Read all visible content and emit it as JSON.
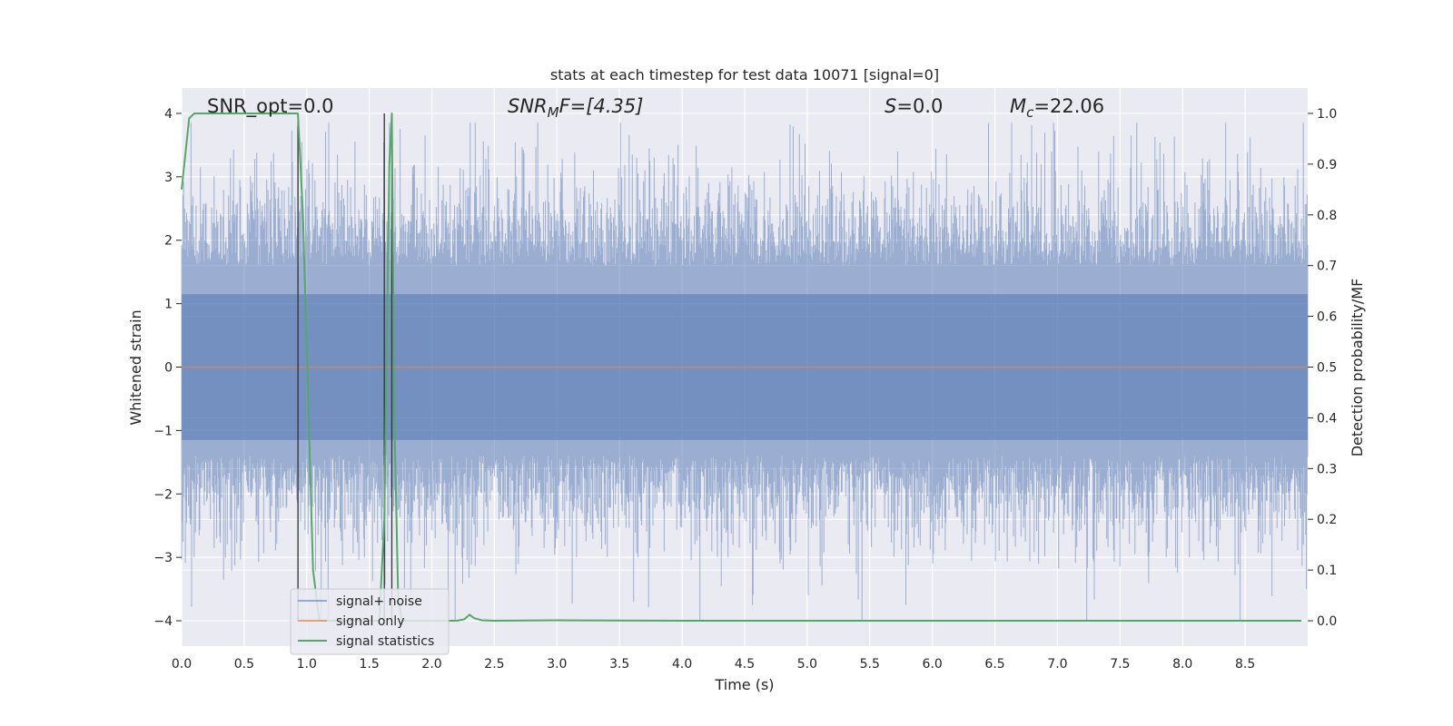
{
  "chart_data": {
    "type": "line",
    "title": "stats at each timestep for test data 10071 [signal=0]",
    "xlabel": "Time (s)",
    "ylabel": "Whitened strain",
    "y2label": "Detection probability/MF",
    "xlim": [
      0.0,
      9.0
    ],
    "ylim": [
      -4.4,
      4.4
    ],
    "y2lim": [
      -0.05,
      1.05
    ],
    "x_ticks": [
      "0.0",
      "0.5",
      "1.0",
      "1.5",
      "2.0",
      "2.5",
      "3.0",
      "3.5",
      "4.0",
      "4.5",
      "5.0",
      "5.5",
      "6.0",
      "6.5",
      "7.0",
      "7.5",
      "8.0",
      "8.5"
    ],
    "y_ticks": [
      "4",
      "3",
      "2",
      "1",
      "0",
      "−1",
      "−2",
      "−3",
      "−4"
    ],
    "y2_ticks": [
      "1.0",
      "0.9",
      "0.8",
      "0.7",
      "0.6",
      "0.5",
      "0.4",
      "0.3",
      "0.2",
      "0.1",
      "0.0"
    ],
    "grid": true,
    "annotations": {
      "snr_opt": "SNR_opt=0.0",
      "snr_mf_main": "SNR",
      "snr_mf_sub": "M",
      "snr_mf_rest": "F=[4.35]",
      "s_main": "S",
      "s_rest": "=0.0",
      "mc_main": "M",
      "mc_sub": "c",
      "mc_rest": "=22.06"
    },
    "vertical_markers_x": [
      0.93,
      1.62,
      1.68
    ],
    "legend": {
      "placement": "lower-left",
      "entries": [
        "signal+ noise",
        "signal only",
        "signal statistics"
      ]
    },
    "series": [
      {
        "name": "signal+ noise",
        "axis": "left",
        "color": "#4c72b0",
        "noise_sigma": 1.0,
        "sample_count": 1800
      },
      {
        "name": "signal only",
        "axis": "left",
        "color": "#dd8452",
        "x": [
          0.0,
          9.0
        ],
        "y": [
          0.0,
          0.0
        ]
      },
      {
        "name": "signal statistics",
        "axis": "right",
        "color": "#55a868",
        "x": [
          0.0,
          0.06,
          0.1,
          0.3,
          0.6,
          0.93,
          0.97,
          1.05,
          1.1,
          1.2,
          1.3,
          1.4,
          1.5,
          1.58,
          1.62,
          1.66,
          1.68,
          1.7,
          1.73,
          1.76,
          1.8,
          1.9,
          2.0,
          2.1,
          2.2,
          2.26,
          2.3,
          2.34,
          2.4,
          2.5,
          3.0,
          4.0,
          5.0,
          6.0,
          7.0,
          8.0,
          8.95
        ],
        "y": [
          0.85,
          0.99,
          1.0,
          1.0,
          1.0,
          1.0,
          0.8,
          0.1,
          0.0,
          0.0,
          0.0,
          0.0,
          0.0,
          0.0,
          0.2,
          0.9,
          1.0,
          0.4,
          0.05,
          0.0,
          0.0,
          0.0,
          0.0,
          0.0,
          0.0,
          0.003,
          0.012,
          0.005,
          0.001,
          0.0,
          0.001,
          0.0,
          0.0,
          0.0,
          0.0,
          0.0,
          0.0
        ]
      }
    ]
  }
}
